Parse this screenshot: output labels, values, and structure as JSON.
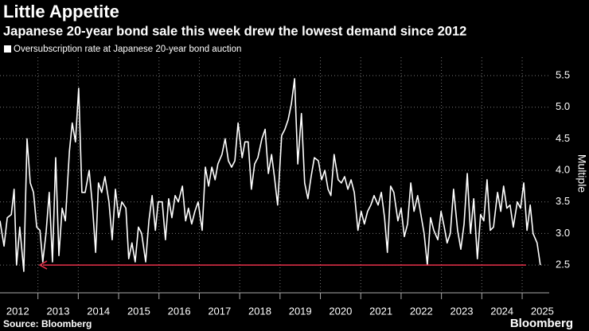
{
  "chart_data": {
    "type": "line",
    "title": "Little Appetite",
    "subtitle": "Japanese 20-year bond sale this week drew the lowest demand since 2012",
    "source": "Source: Bloomberg",
    "brand": "Bloomberg",
    "y_label": "Multiple",
    "x": [
      2012.06,
      2012.16,
      2012.24,
      2012.34,
      2012.41,
      2012.47,
      2012.55,
      2012.65,
      2012.73,
      2012.81,
      2012.89,
      2012.97,
      2013.05,
      2013.12,
      2013.2,
      2013.28,
      2013.36,
      2013.44,
      2013.52,
      2013.6,
      2013.68,
      2013.78,
      2013.85,
      2013.93,
      2014.01,
      2014.09,
      2014.17,
      2014.27,
      2014.35,
      2014.43,
      2014.5,
      2014.58,
      2014.66,
      2014.76,
      2014.84,
      2014.92,
      2015,
      2015.08,
      2015.18,
      2015.25,
      2015.33,
      2015.41,
      2015.49,
      2015.57,
      2015.67,
      2015.75,
      2015.83,
      2015.91,
      2015.98,
      2016.08,
      2016.16,
      2016.24,
      2016.32,
      2016.4,
      2016.48,
      2016.58,
      2016.66,
      2016.73,
      2016.81,
      2016.89,
      2016.97,
      2017.07,
      2017.15,
      2017.23,
      2017.31,
      2017.39,
      2017.46,
      2017.56,
      2017.64,
      2017.72,
      2017.8,
      2017.88,
      2017.96,
      2018.06,
      2018.13,
      2018.21,
      2018.29,
      2018.37,
      2018.45,
      2018.55,
      2018.63,
      2018.71,
      2018.79,
      2018.86,
      2018.94,
      2019.04,
      2019.12,
      2019.2,
      2019.28,
      2019.36,
      2019.44,
      2019.53,
      2019.61,
      2019.69,
      2019.77,
      2019.85,
      2019.95,
      2020.03,
      2020.11,
      2020.19,
      2020.26,
      2020.34,
      2020.44,
      2020.52,
      2020.6,
      2020.68,
      2020.76,
      2020.84,
      2020.93,
      2021.01,
      2021.09,
      2021.17,
      2021.25,
      2021.33,
      2021.43,
      2021.51,
      2021.59,
      2021.66,
      2021.74,
      2021.82,
      2021.92,
      2022,
      2022.08,
      2022.16,
      2022.24,
      2022.32,
      2022.41,
      2022.49,
      2022.57,
      2022.65,
      2022.73,
      2022.81,
      2022.91,
      2022.99,
      2023.07,
      2023.14,
      2023.22,
      2023.3,
      2023.4,
      2023.48,
      2023.56,
      2023.64,
      2023.72,
      2023.8,
      2023.89,
      2023.97,
      2024.05,
      2024.13,
      2024.21,
      2024.29,
      2024.39,
      2024.47,
      2024.54,
      2024.62,
      2024.7,
      2024.78,
      2024.88,
      2024.96,
      2025.04,
      2025.12,
      2025.2,
      2025.27,
      2025.37,
      2025.45
    ],
    "series": [
      {
        "name": "Oversubscription rate at Japanese 20-year bond auction",
        "color": "#ffffff",
        "values": [
          3.2,
          2.8,
          3.25,
          3.3,
          3.7,
          2.5,
          3.1,
          2.4,
          4.5,
          3.8,
          3.65,
          3.1,
          3.05,
          2.55,
          3.0,
          3.65,
          2.55,
          4.2,
          2.65,
          3.4,
          3.2,
          4.3,
          4.75,
          4.45,
          5.3,
          3.65,
          3.65,
          4.0,
          3.45,
          2.7,
          3.8,
          3.65,
          3.9,
          3.5,
          2.9,
          3.7,
          3.25,
          3.5,
          3.4,
          2.6,
          2.85,
          2.55,
          3.1,
          3.0,
          2.55,
          3.2,
          3.6,
          3.05,
          3.5,
          3.5,
          2.9,
          3.55,
          3.25,
          3.6,
          3.5,
          3.75,
          3.2,
          3.4,
          3.15,
          3.35,
          3.5,
          3.05,
          4.05,
          3.75,
          4.05,
          3.85,
          4.1,
          4.25,
          4.5,
          4.15,
          4.05,
          4.15,
          4.75,
          4.2,
          4.45,
          4.45,
          3.7,
          4.1,
          4.2,
          4.5,
          4.65,
          3.95,
          4.25,
          3.9,
          3.45,
          4.55,
          4.65,
          4.8,
          5.05,
          5.45,
          4.1,
          4.9,
          3.8,
          3.55,
          3.9,
          4.2,
          4.15,
          3.85,
          4.0,
          3.7,
          3.6,
          4.25,
          3.85,
          3.8,
          3.9,
          3.7,
          3.85,
          3.65,
          3.05,
          3.35,
          3.15,
          3.35,
          3.45,
          3.6,
          3.45,
          3.65,
          3.25,
          2.7,
          3.75,
          3.65,
          3.2,
          3.4,
          2.95,
          3.15,
          3.8,
          3.35,
          3.6,
          3.3,
          3.0,
          2.5,
          3.25,
          3.05,
          2.9,
          3.35,
          3.1,
          2.85,
          3.0,
          3.7,
          3.05,
          2.75,
          3.15,
          3.95,
          3.0,
          3.55,
          2.6,
          3.3,
          3.2,
          3.85,
          3.05,
          3.1,
          3.65,
          3.35,
          3.75,
          3.4,
          3.45,
          3.1,
          3.5,
          3.4,
          3.8,
          3.05,
          3.45,
          3.0,
          2.85,
          2.5
        ]
      }
    ],
    "xlim": [
      2012.06,
      2025.67
    ],
    "xticks": [
      {
        "value": 2012.5,
        "label": "2012"
      },
      {
        "value": 2013.5,
        "label": "2013"
      },
      {
        "value": 2014.5,
        "label": "2014"
      },
      {
        "value": 2015.5,
        "label": "2015"
      },
      {
        "value": 2016.5,
        "label": "2016"
      },
      {
        "value": 2017.5,
        "label": "2017"
      },
      {
        "value": 2018.5,
        "label": "2018"
      },
      {
        "value": 2019.5,
        "label": "2019"
      },
      {
        "value": 2020.5,
        "label": "2020"
      },
      {
        "value": 2021.5,
        "label": "2021"
      },
      {
        "value": 2022.5,
        "label": "2022"
      },
      {
        "value": 2023.5,
        "label": "2023"
      },
      {
        "value": 2024.5,
        "label": "2024"
      },
      {
        "value": 2025.5,
        "label": "2025"
      }
    ],
    "ylim": [
      2.06,
      5.79
    ],
    "yticks": [
      2.5,
      {
        "value": 3,
        "label": "3.0"
      },
      3.5,
      {
        "value": 4,
        "label": "4.0"
      },
      4.5,
      {
        "value": 5,
        "label": "5.0"
      },
      5.5
    ],
    "grid": true,
    "annotation_color": "#e8314a"
  }
}
